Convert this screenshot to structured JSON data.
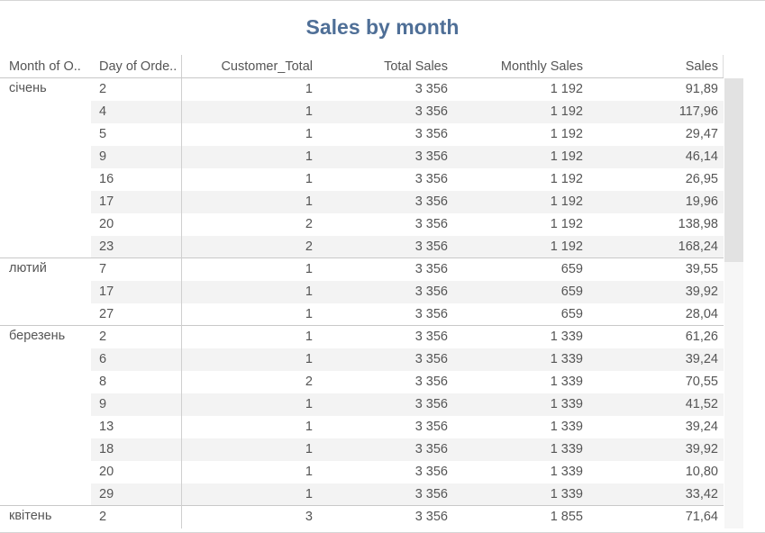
{
  "title": "Sales by month",
  "headers": {
    "month": "Month of O..",
    "day": "Day of Orde..",
    "customer_total": "Customer_Total",
    "total_sales": "Total Sales",
    "monthly_sales": "Monthly Sales",
    "sales": "Sales"
  },
  "groups": [
    {
      "month": "січень",
      "rows": [
        {
          "day": "2",
          "customer_total": "1",
          "total_sales": "3 356",
          "monthly_sales": "1 192",
          "sales": "91,89"
        },
        {
          "day": "4",
          "customer_total": "1",
          "total_sales": "3 356",
          "monthly_sales": "1 192",
          "sales": "117,96"
        },
        {
          "day": "5",
          "customer_total": "1",
          "total_sales": "3 356",
          "monthly_sales": "1 192",
          "sales": "29,47"
        },
        {
          "day": "9",
          "customer_total": "1",
          "total_sales": "3 356",
          "monthly_sales": "1 192",
          "sales": "46,14"
        },
        {
          "day": "16",
          "customer_total": "1",
          "total_sales": "3 356",
          "monthly_sales": "1 192",
          "sales": "26,95"
        },
        {
          "day": "17",
          "customer_total": "1",
          "total_sales": "3 356",
          "monthly_sales": "1 192",
          "sales": "19,96"
        },
        {
          "day": "20",
          "customer_total": "2",
          "total_sales": "3 356",
          "monthly_sales": "1 192",
          "sales": "138,98"
        },
        {
          "day": "23",
          "customer_total": "2",
          "total_sales": "3 356",
          "monthly_sales": "1 192",
          "sales": "168,24"
        }
      ]
    },
    {
      "month": "лютий",
      "rows": [
        {
          "day": "7",
          "customer_total": "1",
          "total_sales": "3 356",
          "monthly_sales": "659",
          "sales": "39,55"
        },
        {
          "day": "17",
          "customer_total": "1",
          "total_sales": "3 356",
          "monthly_sales": "659",
          "sales": "39,92"
        },
        {
          "day": "27",
          "customer_total": "1",
          "total_sales": "3 356",
          "monthly_sales": "659",
          "sales": "28,04"
        }
      ]
    },
    {
      "month": "березень",
      "rows": [
        {
          "day": "2",
          "customer_total": "1",
          "total_sales": "3 356",
          "monthly_sales": "1 339",
          "sales": "61,26"
        },
        {
          "day": "6",
          "customer_total": "1",
          "total_sales": "3 356",
          "monthly_sales": "1 339",
          "sales": "39,24"
        },
        {
          "day": "8",
          "customer_total": "2",
          "total_sales": "3 356",
          "monthly_sales": "1 339",
          "sales": "70,55"
        },
        {
          "day": "9",
          "customer_total": "1",
          "total_sales": "3 356",
          "monthly_sales": "1 339",
          "sales": "41,52"
        },
        {
          "day": "13",
          "customer_total": "1",
          "total_sales": "3 356",
          "monthly_sales": "1 339",
          "sales": "39,24"
        },
        {
          "day": "18",
          "customer_total": "1",
          "total_sales": "3 356",
          "monthly_sales": "1 339",
          "sales": "39,92"
        },
        {
          "day": "20",
          "customer_total": "1",
          "total_sales": "3 356",
          "monthly_sales": "1 339",
          "sales": "10,80"
        },
        {
          "day": "29",
          "customer_total": "1",
          "total_sales": "3 356",
          "monthly_sales": "1 339",
          "sales": "33,42"
        }
      ]
    },
    {
      "month": "квітень",
      "rows": [
        {
          "day": "2",
          "customer_total": "3",
          "total_sales": "3 356",
          "monthly_sales": "1 855",
          "sales": "71,64"
        }
      ]
    }
  ]
}
